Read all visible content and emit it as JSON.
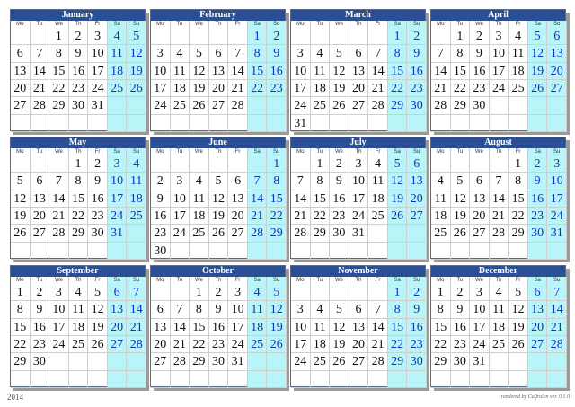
{
  "year": "2014",
  "credit": "rendered by Calfrolen ver. 0.1.0",
  "weekday_labels": [
    "Mo",
    "Tu",
    "We",
    "Th",
    "Fr",
    "Sa",
    "Su"
  ],
  "colors": {
    "header_bg": "#2a4f94",
    "weekend_bg": "#b8f5f8",
    "weekend_text": "#1030c8",
    "day_text": "#111111"
  },
  "months": [
    {
      "name": "January",
      "start_weekday": 3,
      "days": 31
    },
    {
      "name": "February",
      "start_weekday": 6,
      "days": 28
    },
    {
      "name": "March",
      "start_weekday": 6,
      "days": 31
    },
    {
      "name": "April",
      "start_weekday": 2,
      "days": 30
    },
    {
      "name": "May",
      "start_weekday": 4,
      "days": 31
    },
    {
      "name": "June",
      "start_weekday": 7,
      "days": 30
    },
    {
      "name": "July",
      "start_weekday": 2,
      "days": 31
    },
    {
      "name": "August",
      "start_weekday": 5,
      "days": 31
    },
    {
      "name": "September",
      "start_weekday": 1,
      "days": 30
    },
    {
      "name": "October",
      "start_weekday": 3,
      "days": 31
    },
    {
      "name": "November",
      "start_weekday": 6,
      "days": 30
    },
    {
      "name": "December",
      "start_weekday": 1,
      "days": 31
    }
  ]
}
